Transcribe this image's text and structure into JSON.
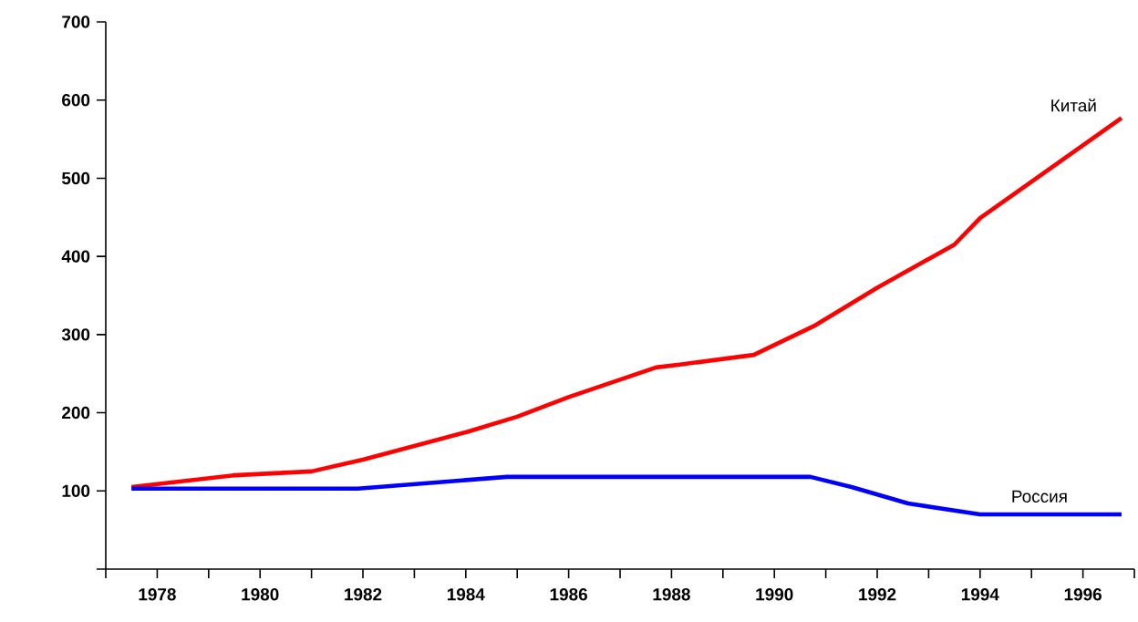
{
  "chart_data": {
    "type": "line",
    "xlim": [
      1977,
      1997
    ],
    "xticks": [
      {
        "value": 1977,
        "label": null
      },
      1978,
      {
        "value": 1979,
        "label": null
      },
      1980,
      {
        "value": 1981,
        "label": null
      },
      1982,
      {
        "value": 1983,
        "label": null
      },
      1984,
      {
        "value": 1985,
        "label": null
      },
      1986,
      {
        "value": 1987,
        "label": null
      },
      1988,
      {
        "value": 1989,
        "label": null
      },
      1990,
      {
        "value": 1991,
        "label": null
      },
      1992,
      {
        "value": 1993,
        "label": null
      },
      1994,
      {
        "value": 1995,
        "label": null
      },
      1996,
      {
        "value": 1997,
        "label": null
      }
    ],
    "ylim": [
      0,
      700
    ],
    "yticks": [
      {
        "value": 0,
        "label": null
      },
      100,
      200,
      300,
      400,
      500,
      600,
      700
    ],
    "grid": false,
    "legend": false,
    "marker": "none",
    "line_style": "solid",
    "series": [
      {
        "name": "Китай",
        "color": "#ff0000",
        "x": [
          1977.5,
          1979.5,
          1981,
          1982,
          1984,
          1985,
          1986,
          1987.7,
          1988.2,
          1989.6,
          1990.8,
          1992,
          1993.5,
          1994,
          1996.75
        ],
        "values": [
          105,
          120,
          125,
          140,
          175,
          195,
          220,
          258,
          262,
          274,
          312,
          360,
          415,
          449,
          577
        ]
      },
      {
        "name": "Россия",
        "color": "#0000ff",
        "x": [
          1977.5,
          1981.9,
          1984.8,
          1990.7,
          1991.5,
          1992.6,
          1994,
          1996.75
        ],
        "values": [
          103,
          103,
          118,
          118,
          105,
          84,
          70,
          70
        ]
      }
    ]
  }
}
